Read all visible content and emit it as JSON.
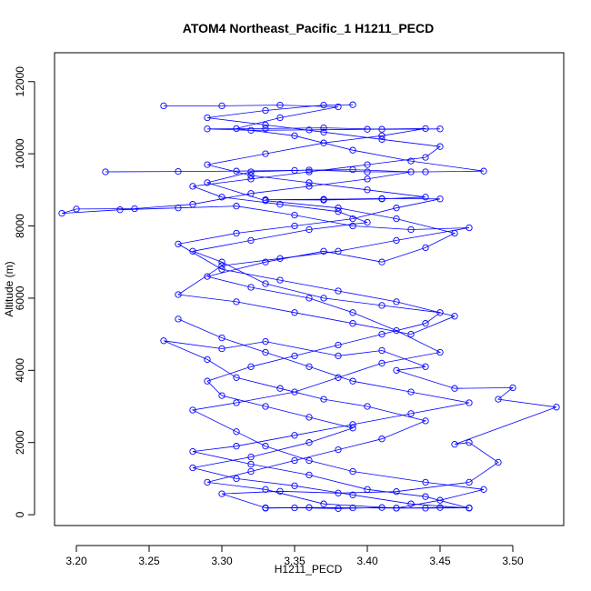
{
  "chart_data": {
    "type": "line",
    "title": "ATOM4 Northeast_Pacific_1 H1211_PECD",
    "xlabel": "H1211_PECD",
    "ylabel": "Altitude (m)",
    "xlim": [
      3.185,
      3.535
    ],
    "ylim": [
      -300,
      12800
    ],
    "x_ticks": [
      3.2,
      3.25,
      3.3,
      3.35,
      3.4,
      3.45,
      3.5
    ],
    "x_tick_labels": [
      "3.20",
      "3.25",
      "3.30",
      "3.35",
      "3.40",
      "3.45",
      "3.50"
    ],
    "y_ticks": [
      0,
      2000,
      4000,
      6000,
      8000,
      10000,
      12000
    ],
    "y_tick_labels": [
      "0",
      "2000",
      "4000",
      "6000",
      "8000",
      "10000",
      "12000"
    ],
    "line_color": "#0000ff",
    "marker": "open-circle",
    "grid": false,
    "series": [
      {
        "points": [
          [
            3.33,
            180
          ],
          [
            3.35,
            190
          ],
          [
            3.38,
            170
          ],
          [
            3.41,
            200
          ],
          [
            3.44,
            180
          ],
          [
            3.47,
            190
          ],
          [
            3.45,
            200
          ],
          [
            3.42,
            180
          ],
          [
            3.39,
            190
          ],
          [
            3.36,
            200
          ],
          [
            3.33,
            190
          ],
          [
            3.3,
            580
          ],
          [
            3.34,
            650
          ],
          [
            3.38,
            600
          ],
          [
            3.42,
            640
          ],
          [
            3.47,
            900
          ],
          [
            3.49,
            1450
          ],
          [
            3.47,
            2000
          ],
          [
            3.46,
            1950
          ],
          [
            3.53,
            2980
          ],
          [
            3.49,
            3200
          ],
          [
            3.5,
            3520
          ],
          [
            3.46,
            3500
          ],
          [
            3.42,
            4000
          ],
          [
            3.44,
            4100
          ],
          [
            3.41,
            4550
          ],
          [
            3.38,
            4400
          ],
          [
            3.33,
            4800
          ],
          [
            3.3,
            4600
          ],
          [
            3.26,
            4820
          ],
          [
            3.29,
            4300
          ],
          [
            3.31,
            3800
          ],
          [
            3.34,
            3500
          ],
          [
            3.37,
            3200
          ],
          [
            3.4,
            3000
          ],
          [
            3.44,
            2600
          ],
          [
            3.41,
            2100
          ],
          [
            3.38,
            1800
          ],
          [
            3.35,
            1500
          ],
          [
            3.32,
            1200
          ],
          [
            3.29,
            900
          ],
          [
            3.33,
            700
          ],
          [
            3.37,
            300
          ],
          [
            3.42,
            180
          ],
          [
            3.45,
            400
          ],
          [
            3.48,
            700
          ],
          [
            3.44,
            900
          ],
          [
            3.39,
            1200
          ],
          [
            3.36,
            1500
          ],
          [
            3.33,
            1900
          ],
          [
            3.31,
            2300
          ],
          [
            3.28,
            2900
          ],
          [
            3.31,
            3100
          ],
          [
            3.35,
            3400
          ],
          [
            3.38,
            3800
          ],
          [
            3.41,
            4200
          ],
          [
            3.45,
            4500
          ],
          [
            3.42,
            5100
          ],
          [
            3.39,
            5600
          ],
          [
            3.36,
            6000
          ],
          [
            3.32,
            6300
          ],
          [
            3.29,
            6600
          ],
          [
            3.33,
            7000
          ],
          [
            3.37,
            7300
          ],
          [
            3.41,
            7000
          ],
          [
            3.44,
            7400
          ],
          [
            3.46,
            7800
          ],
          [
            3.42,
            8200
          ],
          [
            3.38,
            8500
          ],
          [
            3.33,
            8700
          ],
          [
            3.29,
            9200
          ],
          [
            3.32,
            9500
          ],
          [
            3.36,
            9550
          ],
          [
            3.4,
            9500
          ],
          [
            3.44,
            9500
          ],
          [
            3.48,
            9520
          ],
          [
            3.43,
            9800
          ],
          [
            3.39,
            10100
          ],
          [
            3.35,
            10500
          ],
          [
            3.31,
            10700
          ],
          [
            3.34,
            11000
          ],
          [
            3.38,
            11300
          ],
          [
            3.34,
            11350
          ],
          [
            3.3,
            11330
          ],
          [
            3.26,
            11330
          ]
        ]
      },
      {
        "points": [
          [
            3.22,
            9500
          ],
          [
            3.27,
            9510
          ],
          [
            3.31,
            9520
          ],
          [
            3.35,
            9540
          ],
          [
            3.39,
            9560
          ],
          [
            3.43,
            9500
          ],
          [
            3.4,
            9300
          ],
          [
            3.36,
            9100
          ],
          [
            3.32,
            8900
          ],
          [
            3.28,
            8600
          ],
          [
            3.24,
            8480
          ],
          [
            3.2,
            8470
          ],
          [
            3.19,
            8350
          ],
          [
            3.23,
            8450
          ],
          [
            3.27,
            8500
          ],
          [
            3.31,
            8550
          ],
          [
            3.35,
            8300
          ],
          [
            3.39,
            8000
          ],
          [
            3.43,
            7900
          ],
          [
            3.47,
            7950
          ],
          [
            3.42,
            7600
          ],
          [
            3.38,
            7300
          ],
          [
            3.34,
            7100
          ],
          [
            3.3,
            6900
          ],
          [
            3.27,
            6100
          ],
          [
            3.31,
            5900
          ],
          [
            3.35,
            5600
          ],
          [
            3.39,
            5300
          ],
          [
            3.43,
            5000
          ],
          [
            3.46,
            5500
          ],
          [
            3.42,
            5900
          ],
          [
            3.38,
            6200
          ],
          [
            3.34,
            6500
          ],
          [
            3.3,
            6800
          ],
          [
            3.27,
            7500
          ],
          [
            3.31,
            7800
          ],
          [
            3.35,
            8000
          ],
          [
            3.39,
            8200
          ],
          [
            3.42,
            8500
          ],
          [
            3.45,
            8750
          ],
          [
            3.41,
            8760
          ],
          [
            3.37,
            8740
          ],
          [
            3.33,
            8730
          ],
          [
            3.37,
            8720
          ],
          [
            3.41,
            8750
          ],
          [
            3.44,
            8800
          ],
          [
            3.4,
            9000
          ],
          [
            3.36,
            9200
          ],
          [
            3.32,
            9400
          ],
          [
            3.29,
            9700
          ],
          [
            3.33,
            10000
          ],
          [
            3.37,
            10300
          ],
          [
            3.41,
            10500
          ],
          [
            3.44,
            10700
          ],
          [
            3.4,
            10680
          ],
          [
            3.36,
            10660
          ],
          [
            3.32,
            10650
          ],
          [
            3.29,
            10690
          ],
          [
            3.33,
            10700
          ],
          [
            3.37,
            10720
          ],
          [
            3.41,
            10680
          ],
          [
            3.45,
            10690
          ]
        ]
      },
      {
        "points": [
          [
            3.27,
            5420
          ],
          [
            3.3,
            4900
          ],
          [
            3.33,
            4500
          ],
          [
            3.36,
            4100
          ],
          [
            3.39,
            3700
          ],
          [
            3.43,
            3400
          ],
          [
            3.47,
            3100
          ],
          [
            3.43,
            2800
          ],
          [
            3.39,
            2500
          ],
          [
            3.35,
            2200
          ],
          [
            3.31,
            1900
          ],
          [
            3.28,
            1750
          ],
          [
            3.32,
            1400
          ],
          [
            3.36,
            1100
          ],
          [
            3.4,
            700
          ],
          [
            3.44,
            500
          ],
          [
            3.47,
            180
          ],
          [
            3.43,
            300
          ],
          [
            3.39,
            550
          ],
          [
            3.35,
            800
          ],
          [
            3.31,
            1000
          ],
          [
            3.28,
            1300
          ],
          [
            3.32,
            1600
          ],
          [
            3.36,
            2000
          ],
          [
            3.39,
            2400
          ],
          [
            3.36,
            2700
          ],
          [
            3.33,
            3000
          ],
          [
            3.3,
            3300
          ],
          [
            3.29,
            3700
          ],
          [
            3.32,
            4100
          ],
          [
            3.35,
            4400
          ],
          [
            3.38,
            4700
          ],
          [
            3.41,
            5000
          ],
          [
            3.44,
            5300
          ],
          [
            3.45,
            5600
          ],
          [
            3.41,
            5800
          ],
          [
            3.37,
            6000
          ],
          [
            3.33,
            6400
          ],
          [
            3.3,
            7000
          ],
          [
            3.28,
            7300
          ],
          [
            3.32,
            7600
          ],
          [
            3.36,
            7900
          ],
          [
            3.4,
            8100
          ],
          [
            3.38,
            8400
          ],
          [
            3.34,
            8600
          ],
          [
            3.3,
            8800
          ],
          [
            3.28,
            9100
          ],
          [
            3.32,
            9300
          ],
          [
            3.36,
            9500
          ],
          [
            3.4,
            9700
          ],
          [
            3.44,
            9900
          ],
          [
            3.45,
            10200
          ],
          [
            3.41,
            10400
          ],
          [
            3.37,
            10600
          ],
          [
            3.33,
            10800
          ],
          [
            3.29,
            11000
          ],
          [
            3.33,
            11200
          ],
          [
            3.37,
            11350
          ],
          [
            3.39,
            11360
          ]
        ]
      }
    ]
  }
}
